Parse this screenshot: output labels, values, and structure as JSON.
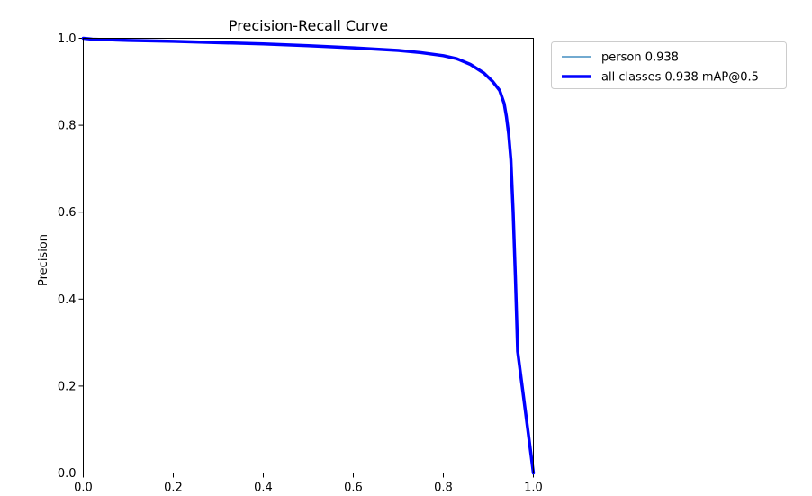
{
  "chart_data": {
    "type": "line",
    "title": "Precision-Recall Curve",
    "xlabel": "",
    "ylabel": "Precision",
    "xlim": [
      0,
      1
    ],
    "ylim": [
      0,
      1
    ],
    "xticks": [
      0.0,
      0.2,
      0.4,
      0.6,
      0.8,
      1.0
    ],
    "yticks": [
      0.0,
      0.2,
      0.4,
      0.6,
      0.8,
      1.0
    ],
    "xtick_labels": [
      "0.0",
      "0.2",
      "0.4",
      "0.6",
      "0.8",
      "1.0"
    ],
    "ytick_labels": [
      "0.0",
      "0.2",
      "0.4",
      "0.6",
      "0.8",
      "1.0"
    ],
    "grid": false,
    "legend_position": "outside-top-right",
    "series": [
      {
        "name": "person 0.938",
        "color": "#1f77b4",
        "style": "thin",
        "x": [
          0.0,
          0.02,
          0.1,
          0.2,
          0.3,
          0.4,
          0.5,
          0.6,
          0.7,
          0.75,
          0.8,
          0.83,
          0.86,
          0.89,
          0.91,
          0.925,
          0.935,
          0.94,
          0.945,
          0.95,
          0.955,
          0.96,
          0.965,
          1.0
        ],
        "y": [
          1.0,
          0.998,
          0.995,
          0.993,
          0.99,
          0.987,
          0.983,
          0.978,
          0.972,
          0.967,
          0.96,
          0.953,
          0.94,
          0.92,
          0.9,
          0.88,
          0.85,
          0.82,
          0.78,
          0.72,
          0.6,
          0.45,
          0.28,
          0.0
        ]
      },
      {
        "name": "all classes 0.938 mAP@0.5",
        "color": "#0000ff",
        "style": "thick",
        "x": [
          0.0,
          0.02,
          0.1,
          0.2,
          0.3,
          0.4,
          0.5,
          0.6,
          0.7,
          0.75,
          0.8,
          0.83,
          0.86,
          0.89,
          0.91,
          0.925,
          0.935,
          0.94,
          0.945,
          0.95,
          0.955,
          0.96,
          0.965,
          1.0
        ],
        "y": [
          1.0,
          0.998,
          0.995,
          0.993,
          0.99,
          0.987,
          0.983,
          0.978,
          0.972,
          0.967,
          0.96,
          0.953,
          0.94,
          0.92,
          0.9,
          0.88,
          0.85,
          0.82,
          0.78,
          0.72,
          0.6,
          0.45,
          0.28,
          0.0
        ]
      }
    ]
  }
}
